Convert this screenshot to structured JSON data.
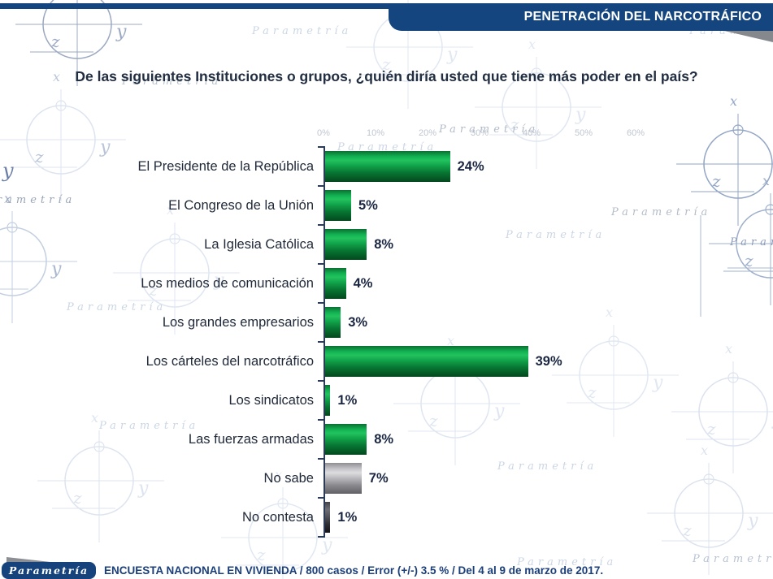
{
  "header": {
    "banner_label": "PENETRACIÓN DEL NARCOTRÁFICO"
  },
  "title": "De las siguientes Instituciones o grupos, ¿quién diría usted que tiene más poder en el país?",
  "chart_data": {
    "type": "bar",
    "orientation": "horizontal",
    "title": "De las siguientes Instituciones o grupos, ¿quién diría usted que tiene más poder en el país?",
    "categories": [
      "El Presidente de la República",
      "El Congreso de la Unión",
      "La Iglesia Católica",
      "Los medios de comunicación",
      "Los grandes empresarios",
      "Los cárteles del narcotráfico",
      "Los sindicatos",
      "Las fuerzas armadas",
      "No sabe",
      "No contesta"
    ],
    "values": [
      24,
      5,
      8,
      4,
      3,
      39,
      1,
      8,
      7,
      1
    ],
    "value_labels": [
      "24%",
      "5%",
      "8%",
      "4%",
      "3%",
      "39%",
      "1%",
      "8%",
      "7%",
      "1%"
    ],
    "bar_styles": [
      "green",
      "green",
      "green",
      "green",
      "green",
      "green",
      "green",
      "green",
      "gray",
      "dark"
    ],
    "axis_ticks": [
      "0%",
      "10%",
      "20%",
      "30%",
      "40%",
      "50%",
      "60%"
    ],
    "xlim": [
      0,
      60
    ],
    "grid": false,
    "legend": "none",
    "bar_color_green": "#0fa04a",
    "bar_color_gray": "#b5b5b9",
    "bar_color_dark": "#2f2f36"
  },
  "footer": {
    "logo_label": "Parametría",
    "text": "ENCUESTA NACIONAL EN VIVIENDA / 800 casos / Error (+/-) 3.5 % / Del 4 al 9 de marzo de 2017."
  },
  "background": {
    "watermark_text": "Parametría",
    "axis_letters": {
      "x": "x",
      "y": "y",
      "z": "z"
    }
  },
  "colors": {
    "header_navy": "#15457e",
    "footer_navy": "#1b3f7a",
    "text_dark": "#212a3a",
    "axis": "#2c3c58",
    "axis_label_gray": "#bfc6d1"
  }
}
